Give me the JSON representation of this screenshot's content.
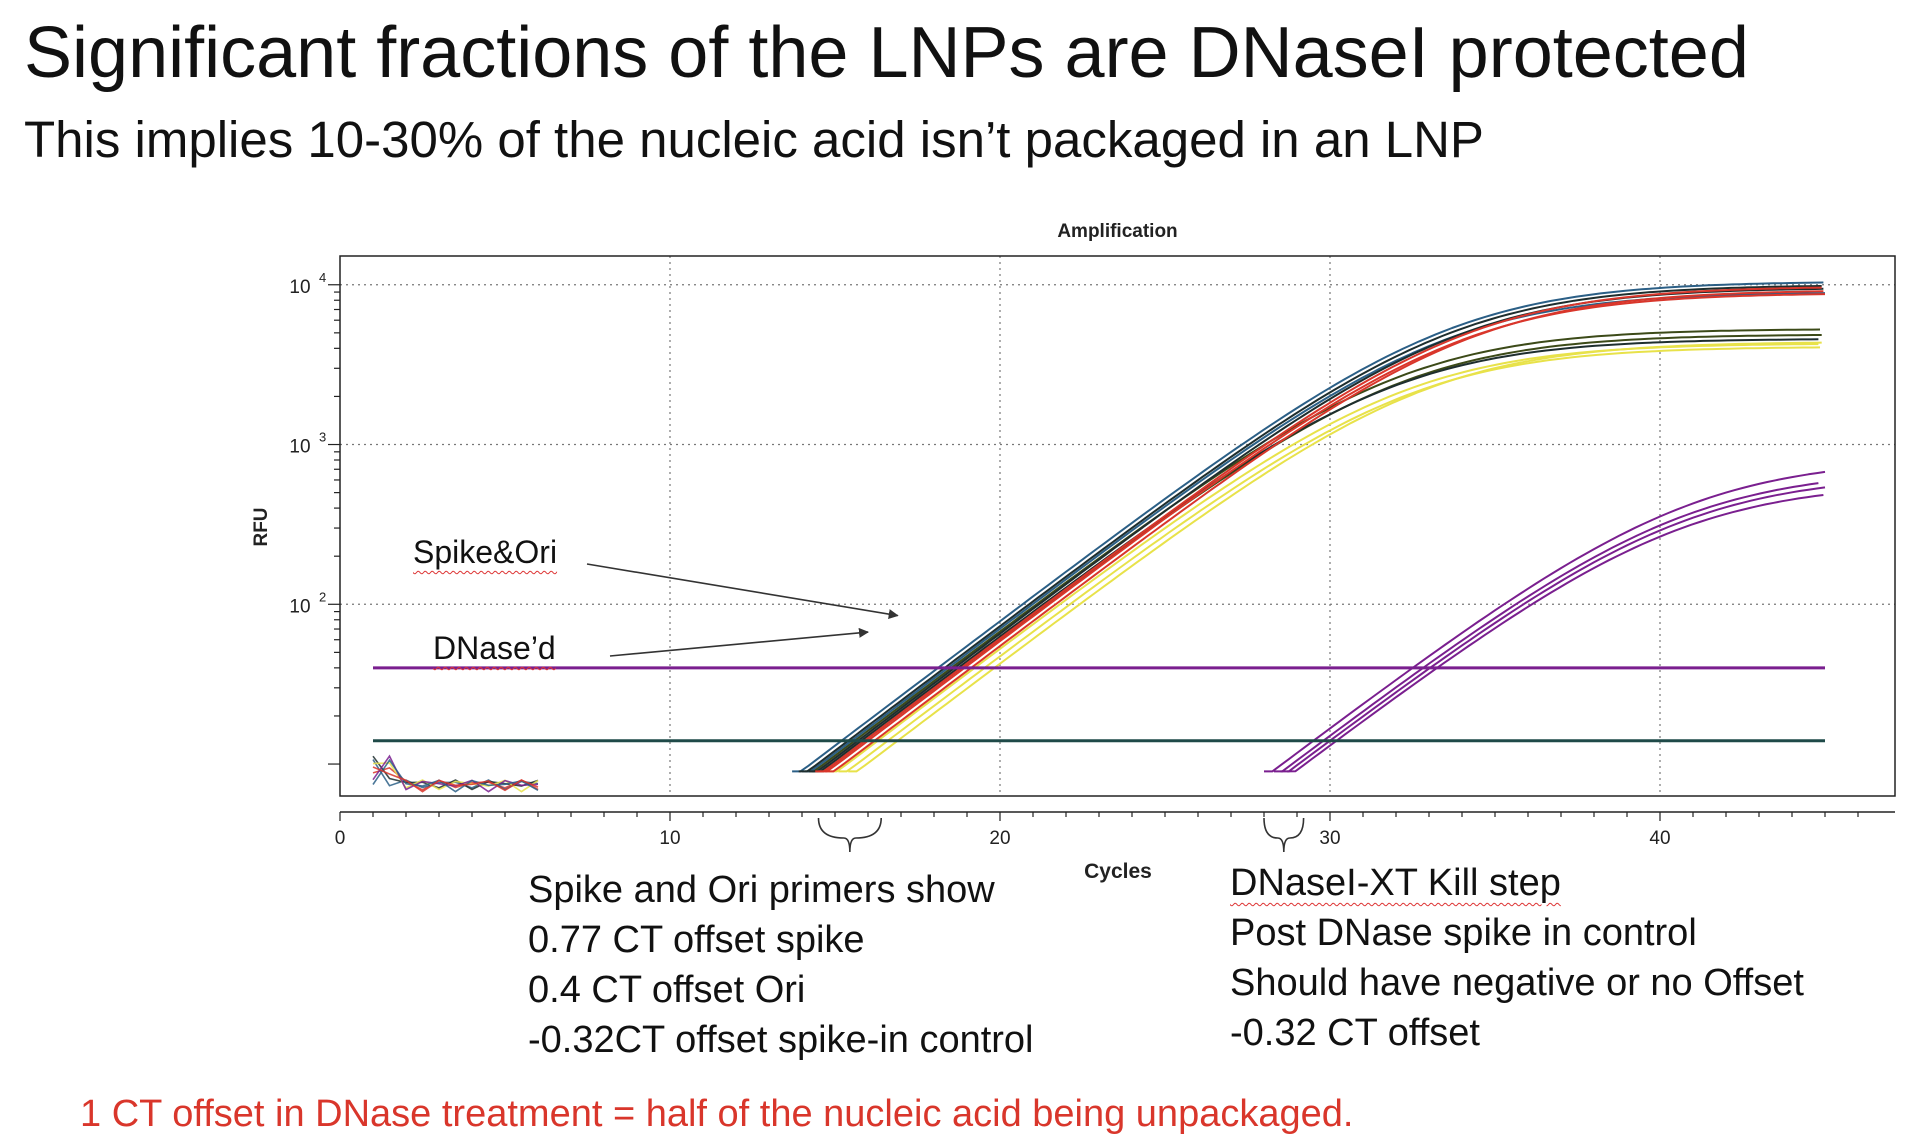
{
  "slide": {
    "title": "Significant fractions of the LNPs are DNaseI protected",
    "subtitle": "This implies 10-30% of the nucleic acid isn’t packaged in an LNP",
    "footer": "1 CT offset in DNase treatment = half of the nucleic acid being unpackaged.",
    "footer_color": "#d9362b"
  },
  "notes": {
    "left": [
      "Spike and Ori primers show",
      "0.77 CT offset spike",
      "0.4   CT offset Ori",
      "-0.32CT offset spike-in control"
    ],
    "right": [
      "DNaseI-XT Kill step",
      "Post DNase spike in control",
      "Should have negative or no Offset",
      "-0.32 CT offset"
    ]
  },
  "chart_data": {
    "type": "line",
    "title": "Amplification",
    "xlabel": "Cycles",
    "ylabel": "RFU",
    "yscale": "log",
    "xlim": [
      0,
      47
    ],
    "ylim_log10": [
      0.8,
      4.18
    ],
    "xticks": [
      0,
      10,
      20,
      30,
      40
    ],
    "xtick_labels": [
      "0",
      "10",
      "20",
      "30",
      "40"
    ],
    "yticks": [
      {
        "value": 100,
        "base": "10",
        "exp": "2"
      },
      {
        "value": 1000,
        "base": "10",
        "exp": "3"
      },
      {
        "value": 10000,
        "base": "10",
        "exp": "4"
      }
    ],
    "grid": true,
    "thresholds": [
      {
        "name": "threshold-purple",
        "value": 40,
        "color": "#7a1f8f"
      },
      {
        "name": "threshold-green",
        "value": 14,
        "color": "#1f4a48"
      }
    ],
    "series": [
      {
        "group": "spike-ori",
        "color": "#2b5f86",
        "ct": 15.2,
        "plateau": 10500
      },
      {
        "group": "spike-ori",
        "color": "#2b5f86",
        "ct": 15.5,
        "plateau": 9000
      },
      {
        "group": "spike-ori",
        "color": "#1e2e2e",
        "ct": 15.4,
        "plateau": 10000
      },
      {
        "group": "spike-ori",
        "color": "#1e2e2e",
        "ct": 15.7,
        "plateau": 9600
      },
      {
        "group": "spike-ori",
        "color": "#d9362b",
        "ct": 15.9,
        "plateau": 9800
      },
      {
        "group": "spike-ori",
        "color": "#d9362b",
        "ct": 16.2,
        "plateau": 9300
      },
      {
        "group": "spike-ori",
        "color": "#d9362b",
        "ct": 16.0,
        "plateau": 8900
      },
      {
        "group": "dnase",
        "color": "#3c4a18",
        "ct": 15.6,
        "plateau": 5300
      },
      {
        "group": "dnase",
        "color": "#3c4a18",
        "ct": 15.9,
        "plateau": 4900
      },
      {
        "group": "dnase",
        "color": "#1e2e2e",
        "ct": 15.8,
        "plateau": 4600
      },
      {
        "group": "dnase",
        "color": "#e8e24a",
        "ct": 16.3,
        "plateau": 4300
      },
      {
        "group": "dnase",
        "color": "#e8e24a",
        "ct": 16.6,
        "plateau": 4100
      },
      {
        "group": "dnase",
        "color": "#e8e24a",
        "ct": 16.9,
        "plateau": 4400
      },
      {
        "group": "control",
        "color": "#7a1f8f",
        "ct": 29.5,
        "plateau": 820
      },
      {
        "group": "control",
        "color": "#7a1f8f",
        "ct": 29.8,
        "plateau": 700
      },
      {
        "group": "control",
        "color": "#7a1f8f",
        "ct": 30.0,
        "plateau": 650
      },
      {
        "group": "control",
        "color": "#7a1f8f",
        "ct": 30.2,
        "plateau": 580
      }
    ],
    "annotations": [
      {
        "name": "spike-ori-label",
        "text": "Spike&Ori",
        "target_x": 16.9,
        "target_y": 85
      },
      {
        "name": "dnase-label",
        "text": "DNase’d",
        "target_x": 16.0,
        "target_y": 67
      }
    ],
    "brackets": [
      {
        "name": "left-bracket",
        "x_from": 14.5,
        "x_to": 16.4
      },
      {
        "name": "right-bracket",
        "x_from": 28.0,
        "x_to": 29.2
      }
    ]
  }
}
